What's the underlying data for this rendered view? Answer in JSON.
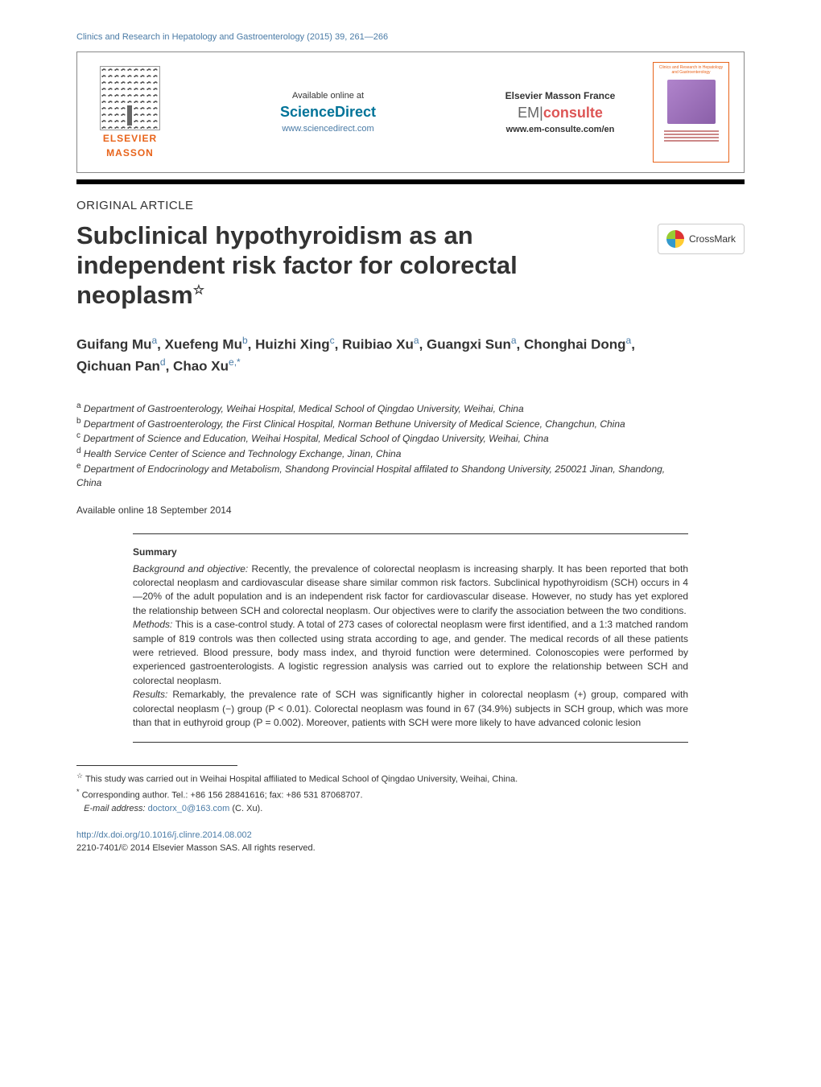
{
  "running_header": "Clinics and Research in Hepatology and Gastroenterology (2015) 39, 261—266",
  "header": {
    "elsevier": "ELSEVIER",
    "masson": "MASSON",
    "available_at": "Available online at",
    "sciencedirect": "ScienceDirect",
    "sd_url": "www.sciencedirect.com",
    "em_label": "Elsevier Masson France",
    "em_prefix": "EM",
    "em_consulte": "consulte",
    "em_url": "www.em-consulte.com/en",
    "cover_title": "Clinics and Research in Hepatology and Gastroenterology"
  },
  "article_type": "ORIGINAL ARTICLE",
  "title": "Subclinical hypothyroidism as an independent risk factor for colorectal neoplasm",
  "title_note_marker": "☆",
  "crossmark": "CrossMark",
  "authors_html": "Guifang Mu<sup>a</sup>, Xuefeng Mu<sup>b</sup>, Huizhi Xing<sup>c</sup>, Ruibiao Xu<sup>a</sup>, Guangxi Sun<sup>a</sup>, Chonghai Dong<sup>a</sup>, Qichuan Pan<sup>d</sup>, Chao Xu<sup>e,*</sup>",
  "affiliations": {
    "a": "Department of Gastroenterology, Weihai Hospital, Medical School of Qingdao University, Weihai, China",
    "b": "Department of Gastroenterology, the First Clinical Hospital, Norman Bethune University of Medical Science, Changchun, China",
    "c": "Department of Science and Education, Weihai Hospital, Medical School of Qingdao University, Weihai, China",
    "d": "Health Service Center of Science and Technology Exchange, Jinan, China",
    "e": "Department of Endocrinology and Metabolism, Shandong Provincial Hospital affilated to Shandong University, 250021 Jinan, Shandong, China"
  },
  "available_online": "Available online 18 September 2014",
  "summary_heading": "Summary",
  "abstract": {
    "background_label": "Background and objective:",
    "background": " Recently, the prevalence of colorectal neoplasm is increasing sharply. It has been reported that both colorectal neoplasm and cardiovascular disease share similar common risk factors. Subclinical hypothyroidism (SCH) occurs in 4—20% of the adult population and is an independent risk factor for cardiovascular disease. However, no study has yet explored the relationship between SCH and colorectal neoplasm. Our objectives were to clarify the association between the two conditions.",
    "methods_label": "Methods:",
    "methods": " This is a case-control study. A total of 273 cases of colorectal neoplasm were first identified, and a 1:3 matched random sample of 819 controls was then collected using strata according to age, and gender. The medical records of all these patients were retrieved. Blood pressure, body mass index, and thyroid function were determined. Colonoscopies were performed by experienced gastroenterologists. A logistic regression analysis was carried out to explore the relationship between SCH and colorectal neoplasm.",
    "results_label": "Results:",
    "results": " Remarkably, the prevalence rate of SCH was significantly higher in colorectal neoplasm (+) group, compared with colorectal neoplasm (−) group (P < 0.01). Colorectal neoplasm was found in 67 (34.9%) subjects in SCH group, which was more than that in euthyroid group (P = 0.002). Moreover, patients with SCH were more likely to have advanced colonic lesion"
  },
  "footnotes": {
    "star": "This study was carried out in Weihai Hospital affiliated to Medical School of Qingdao University, Weihai, China.",
    "corr": "Corresponding author. Tel.: +86 156 28841616; fax: +86 531 87068707.",
    "email_label": "E-mail address:",
    "email": "doctorx_0@163.com",
    "email_suffix": " (C. Xu)."
  },
  "doi": "http://dx.doi.org/10.1016/j.clinre.2014.08.002",
  "copyright": "2210-7401/© 2014 Elsevier Masson SAS. All rights reserved.",
  "colors": {
    "link": "#4a7ba6",
    "elsevier_orange": "#e8641b",
    "text": "#333333",
    "background": "#ffffff"
  },
  "typography": {
    "title_size_pt": 31,
    "author_size_pt": 17,
    "body_size_pt": 12,
    "footnote_size_pt": 11
  }
}
